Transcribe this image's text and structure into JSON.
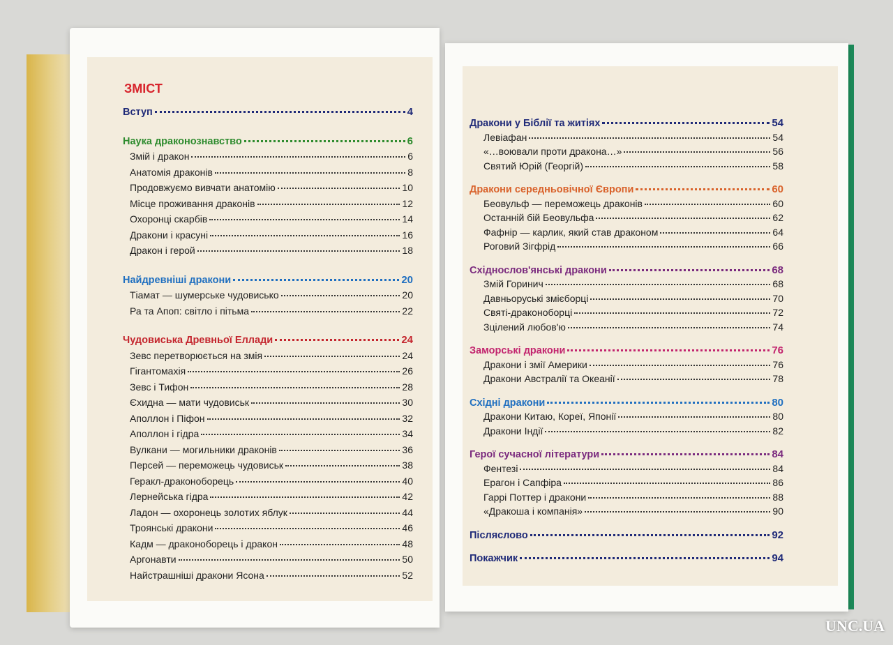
{
  "left_page": {
    "title": "ЗМІСТ",
    "sections": [
      {
        "title": "Вступ",
        "page": 4,
        "color": "#1f2a78",
        "entries": []
      },
      {
        "title": "Наука драконознавство",
        "page": 6,
        "color": "#2e8b2e",
        "entries": [
          {
            "title": "Змій і дракон",
            "page": 6
          },
          {
            "title": "Анатомія драконів",
            "page": 8
          },
          {
            "title": "Продовжуємо вивчати анатомію",
            "page": 10
          },
          {
            "title": "Місце проживання драконів",
            "page": 12
          },
          {
            "title": "Охоронці скарбів",
            "page": 14
          },
          {
            "title": "Дракони і красуні",
            "page": 16
          },
          {
            "title": "Дракон і герой",
            "page": 18
          }
        ]
      },
      {
        "title": "Найдревніші дракони",
        "page": 20,
        "color": "#1f6fc0",
        "entries": [
          {
            "title": "Тіамат — шумерське чудовисько",
            "page": 20
          },
          {
            "title": "Ра та Апоп: світло і пітьма",
            "page": 22
          }
        ]
      },
      {
        "title": "Чудовиська Древньої Еллади",
        "page": 24,
        "color": "#c4262e",
        "entries": [
          {
            "title": "Зевс перетворюється на змія",
            "page": 24
          },
          {
            "title": "Гігантомахія",
            "page": 26
          },
          {
            "title": "Зевс і Тифон",
            "page": 28
          },
          {
            "title": "Єхидна — мати чудовиськ",
            "page": 30
          },
          {
            "title": "Аполлон і Піфон",
            "page": 32
          },
          {
            "title": "Аполлон і гідра",
            "page": 34
          },
          {
            "title": "Вулкани — могильники драконів",
            "page": 36
          },
          {
            "title": "Персей — переможець чудовиськ",
            "page": 38
          },
          {
            "title": "Геракл-драконоборець",
            "page": 40
          },
          {
            "title": "Лернейська гідра",
            "page": 42
          },
          {
            "title": "Ладон — охоронець золотих яблук",
            "page": 44
          },
          {
            "title": "Троянські дракони",
            "page": 46
          },
          {
            "title": "Кадм — драконоборець і дракон",
            "page": 48
          },
          {
            "title": "Аргонавти",
            "page": 50
          },
          {
            "title": "Найстрашніші дракони Ясона",
            "page": 52
          }
        ]
      }
    ]
  },
  "right_page": {
    "sections": [
      {
        "title": "Дракони у Біблії та житіях",
        "page": 54,
        "color": "#1f2a78",
        "entries": [
          {
            "title": "Левіафан",
            "page": 54
          },
          {
            "title": "«…воювали проти дракона…»",
            "page": 56
          },
          {
            "title": "Святий Юрій (Георгій)",
            "page": 58
          }
        ]
      },
      {
        "title": "Дракони середньовічної Європи",
        "page": 60,
        "color": "#d9622b",
        "entries": [
          {
            "title": "Беовульф — переможець драконів",
            "page": 60
          },
          {
            "title": "Останній бій Беовульфа",
            "page": 62
          },
          {
            "title": "Фафнір — карлик, який став драконом",
            "page": 64
          },
          {
            "title": "Роговий Зігфрід",
            "page": 66
          }
        ]
      },
      {
        "title": "Східнослов'янські дракони",
        "page": 68,
        "color": "#7a2a7e",
        "entries": [
          {
            "title": "Змій Горинич",
            "page": 68
          },
          {
            "title": "Давньоруські змієборці",
            "page": 70
          },
          {
            "title": "Святі-драконоборці",
            "page": 72
          },
          {
            "title": "Зцілений любов'ю",
            "page": 74
          }
        ]
      },
      {
        "title": "Заморські дракони",
        "page": 76,
        "color": "#c2246e",
        "entries": [
          {
            "title": "Дракони і змії Америки",
            "page": 76
          },
          {
            "title": "Дракони Австралії та Океанії",
            "page": 78
          }
        ]
      },
      {
        "title": "Східні дракони",
        "page": 80,
        "color": "#1f6fc0",
        "entries": [
          {
            "title": "Дракони Китаю, Кореї, Японії",
            "page": 80
          },
          {
            "title": "Дракони Індії",
            "page": 82
          }
        ]
      },
      {
        "title": "Герої сучасної літератури",
        "page": 84,
        "color": "#7a2a7e",
        "entries": [
          {
            "title": "Фентезі",
            "page": 84
          },
          {
            "title": "Ерагон і Сапфіра",
            "page": 86
          },
          {
            "title": "Гаррі Поттер і дракони",
            "page": 88
          },
          {
            "title": "«Дракоша і компанія»",
            "page": 90
          }
        ]
      },
      {
        "title": "Післяслово",
        "page": 92,
        "color": "#1f2a78",
        "entries": []
      },
      {
        "title": "Покажчик",
        "page": 94,
        "color": "#1f2a78",
        "entries": []
      }
    ]
  },
  "watermark": "UNC.UA"
}
